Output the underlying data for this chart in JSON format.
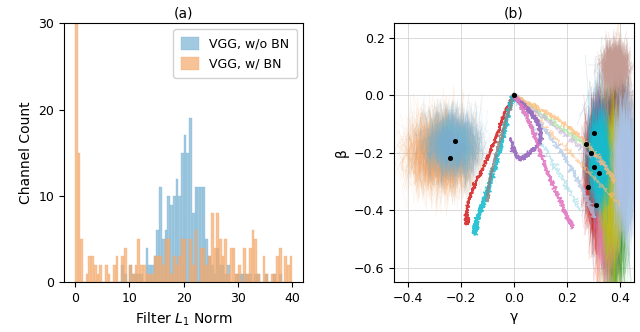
{
  "title_a": "(a)",
  "title_b": "(b)",
  "hist_xlim": [
    -2,
    42
  ],
  "hist_ylim": [
    0,
    30
  ],
  "hist_xlabel": "Filter $L_1$ Norm",
  "hist_ylabel": "Channel Count",
  "scatter_xlim": [
    -0.45,
    0.45
  ],
  "scatter_ylim": [
    -0.65,
    0.25
  ],
  "scatter_xlabel": "γ",
  "scatter_ylabel": "β",
  "color_wo_bn": "#7ab3d4",
  "color_w_bn": "#f5a96a",
  "legend_labels": [
    "VGG, w/o BN",
    "VGG, w/ BN"
  ],
  "random_seed": 42
}
